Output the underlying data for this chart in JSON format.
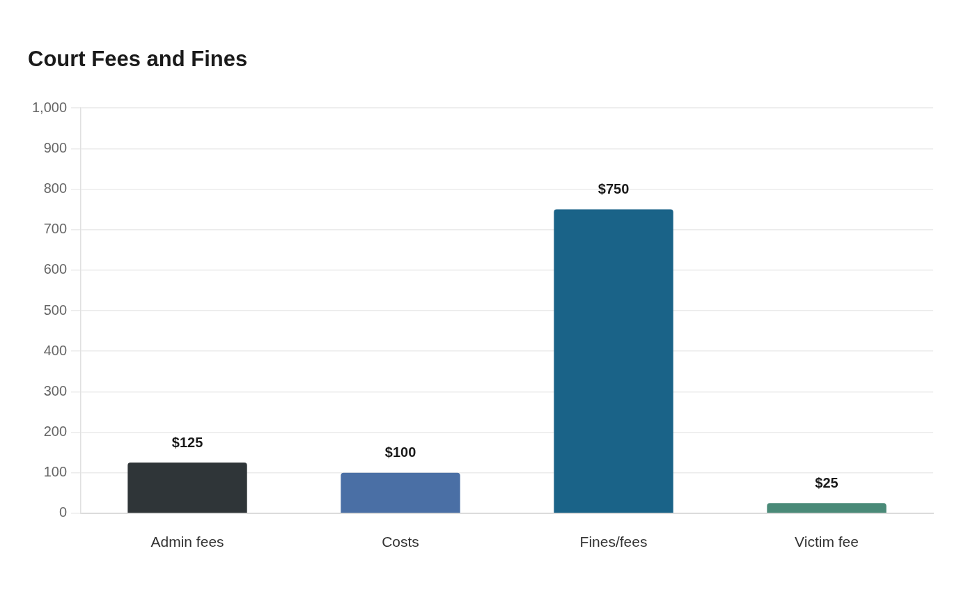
{
  "chart_data": {
    "type": "bar",
    "title": "Court Fees and Fines",
    "categories": [
      "Admin fees",
      "Costs",
      "Fines/fees",
      "Victim fee"
    ],
    "values": [
      125,
      100,
      750,
      25
    ],
    "colors": [
      "#2f3538",
      "#4a6fa5",
      "#1a6388",
      "#4a8a78"
    ],
    "value_labels": [
      "$125",
      "$100",
      "$750",
      "$25"
    ],
    "ylim": [
      0,
      1000
    ],
    "yticks": [
      0,
      100,
      200,
      300,
      400,
      500,
      600,
      700,
      800,
      900,
      {
        "value": 1000,
        "label": "1,000"
      }
    ],
    "grid": "y",
    "legend": false
  }
}
